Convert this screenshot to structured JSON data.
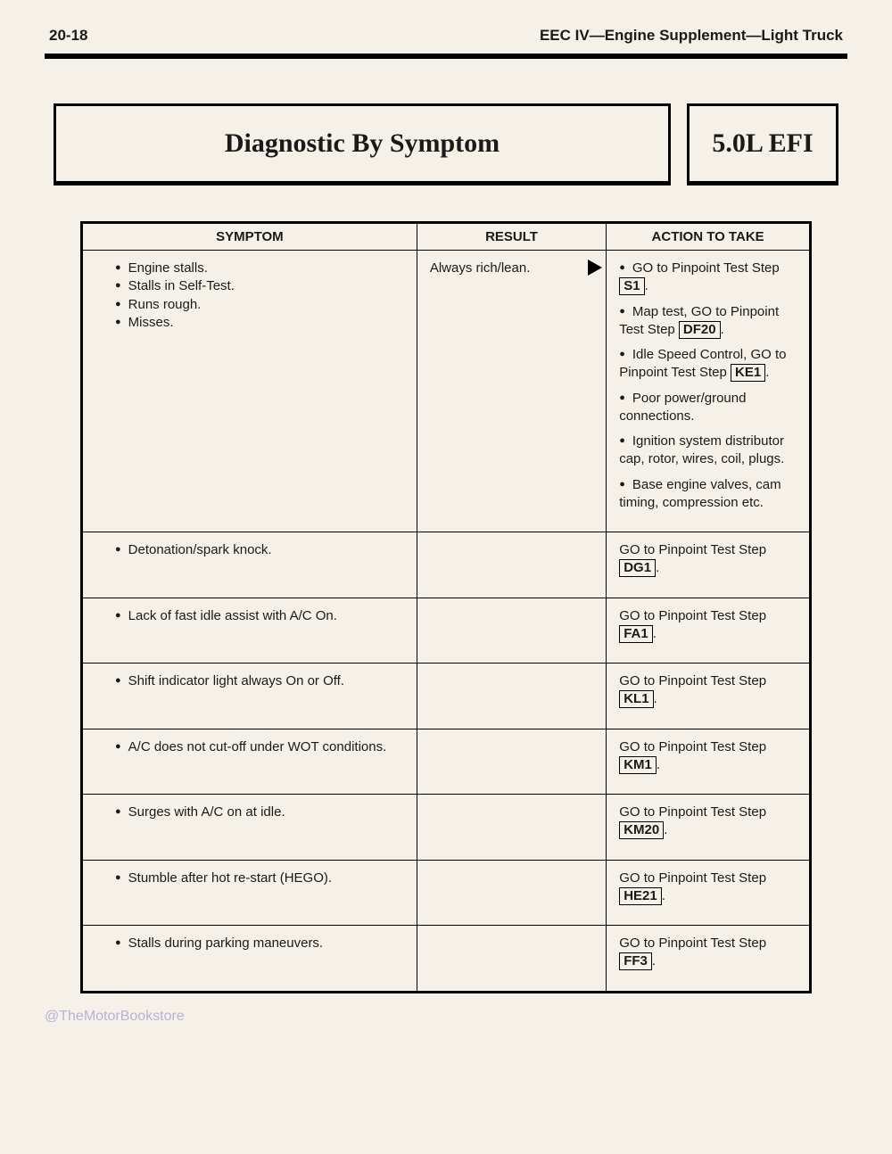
{
  "header": {
    "page_number": "20-18",
    "doc_title": "EEC IV—Engine Supplement—Light Truck"
  },
  "title": "Diagnostic By Symptom",
  "engine": "5.0L EFI",
  "columns": {
    "symptom": "SYMPTOM",
    "result": "RESULT",
    "action": "ACTION TO TAKE"
  },
  "rows": [
    {
      "symptoms": [
        "Engine stalls.",
        "Stalls in Self-Test.",
        "Runs rough.",
        "Misses."
      ],
      "result": "Always rich/lean.",
      "show_arrow": true,
      "actions": [
        {
          "bullet": true,
          "pre": "GO to Pinpoint Test Step",
          "code": "S1",
          "post": "."
        },
        {
          "bullet": true,
          "pre": "Map test, GO to Pinpoint Test Step",
          "code": "DF20",
          "post": "."
        },
        {
          "bullet": true,
          "pre": "Idle Speed Control, GO to Pinpoint Test Step",
          "code": "KE1",
          "post": "."
        },
        {
          "bullet": true,
          "text": "Poor power/ground connections."
        },
        {
          "bullet": true,
          "text": "Ignition system distributor cap, rotor, wires, coil, plugs."
        },
        {
          "bullet": true,
          "text": "Base engine valves, cam timing, compression etc."
        }
      ]
    },
    {
      "symptoms": [
        "Detonation/spark knock."
      ],
      "result": "",
      "actions": [
        {
          "bullet": false,
          "pre": "GO to Pinpoint Test Step",
          "code": "DG1",
          "post": "."
        }
      ]
    },
    {
      "symptoms": [
        "Lack of fast idle assist with A/C On."
      ],
      "result": "",
      "actions": [
        {
          "bullet": false,
          "pre": "GO to Pinpoint Test Step",
          "code": "FA1",
          "post": "."
        }
      ]
    },
    {
      "symptoms": [
        "Shift indicator light always On or Off."
      ],
      "result": "",
      "actions": [
        {
          "bullet": false,
          "pre": "GO to Pinpoint Test Step",
          "code": "KL1",
          "post": "."
        }
      ]
    },
    {
      "symptoms": [
        "A/C does not cut-off under WOT conditions."
      ],
      "result": "",
      "actions": [
        {
          "bullet": false,
          "pre": "GO to Pinpoint Test Step",
          "code": "KM1",
          "post": "."
        }
      ]
    },
    {
      "symptoms": [
        "Surges with A/C on at idle."
      ],
      "result": "",
      "actions": [
        {
          "bullet": false,
          "pre": "GO to Pinpoint Test Step",
          "code": "KM20",
          "post": "."
        }
      ]
    },
    {
      "symptoms": [
        "Stumble after hot re-start (HEGO)."
      ],
      "result": "",
      "actions": [
        {
          "bullet": false,
          "pre": "GO to Pinpoint Test Step",
          "code": "HE21",
          "post": "."
        }
      ]
    },
    {
      "symptoms": [
        "Stalls during parking maneuvers."
      ],
      "result": "",
      "actions": [
        {
          "bullet": false,
          "pre": "GO to Pinpoint Test Step",
          "code": "FF3",
          "post": "."
        }
      ]
    }
  ],
  "watermark": "@TheMotorBookstore"
}
